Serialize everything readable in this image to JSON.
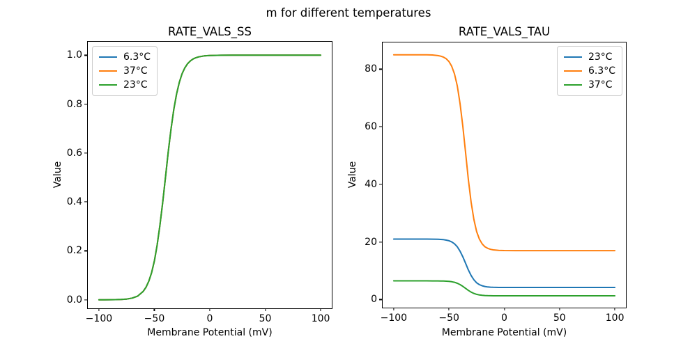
{
  "figure": {
    "suptitle": "m for different temperatures",
    "background_color": "#ffffff",
    "text_color": "#000000"
  },
  "colors": {
    "blue": "#1f77b4",
    "orange": "#ff7f0e",
    "green": "#2ca02c",
    "axis": "#000000",
    "legend_border": "#cccccc"
  },
  "chart_data": [
    {
      "id": "rate_vals_ss",
      "type": "line",
      "title": "RATE_VALS_SS",
      "xlabel": "Membrane Potential (mV)",
      "ylabel": "Value",
      "grid": false,
      "xlim": [
        -110,
        110
      ],
      "ylim": [
        -0.035,
        1.055
      ],
      "xticks": {
        "values": [
          -100,
          -50,
          0,
          50,
          100
        ],
        "labels": [
          "−100",
          "−50",
          "0",
          "50",
          "100"
        ]
      },
      "yticks": {
        "values": [
          0.0,
          0.2,
          0.4,
          0.6,
          0.8,
          1.0
        ],
        "labels": [
          "0.0",
          "0.2",
          "0.4",
          "0.6",
          "0.8",
          "1.0"
        ]
      },
      "legend": {
        "position": "upper-left",
        "entries": [
          {
            "label": "6.3°C",
            "color": "#1f77b4"
          },
          {
            "label": "37°C",
            "color": "#ff7f0e"
          },
          {
            "label": "23°C",
            "color": "#2ca02c"
          }
        ]
      },
      "note": "All three temperature curves overlap exactly; the green 23°C curve is drawn last and visible.",
      "x": [
        -100,
        -95,
        -90,
        -85,
        -80,
        -75,
        -70,
        -65,
        -60,
        -57.5,
        -55,
        -52.5,
        -50,
        -47.5,
        -45,
        -42.5,
        -40,
        -37.5,
        -35,
        -32.5,
        -30,
        -27.5,
        -25,
        -22.5,
        -20,
        -17.5,
        -15,
        -12.5,
        -10,
        -5,
        0,
        10,
        20,
        30,
        50,
        75,
        100
      ],
      "curves": {
        "ss": [
          0.0,
          0.0001,
          0.0002,
          0.0006,
          0.0013,
          0.0029,
          0.0067,
          0.0152,
          0.0344,
          0.0513,
          0.0759,
          0.1107,
          0.1589,
          0.2227,
          0.3036,
          0.3973,
          0.5,
          0.6027,
          0.6964,
          0.7773,
          0.8411,
          0.8893,
          0.9241,
          0.9487,
          0.9656,
          0.977,
          0.9848,
          0.9899,
          0.9933,
          0.9971,
          0.9987,
          0.9998,
          1.0,
          1.0,
          1.0,
          1.0,
          1.0
        ]
      },
      "series": [
        {
          "label": "6.3°C",
          "color": "#1f77b4",
          "curve": "ss"
        },
        {
          "label": "37°C",
          "color": "#ff7f0e",
          "curve": "ss"
        },
        {
          "label": "23°C",
          "color": "#2ca02c",
          "curve": "ss"
        }
      ]
    },
    {
      "id": "rate_vals_tau",
      "type": "line",
      "title": "RATE_VALS_TAU",
      "xlabel": "Membrane Potential (mV)",
      "ylabel": "Value",
      "grid": false,
      "xlim": [
        -110,
        110
      ],
      "ylim": [
        -2.8,
        89.3
      ],
      "xticks": {
        "values": [
          -100,
          -50,
          0,
          50,
          100
        ],
        "labels": [
          "−100",
          "−50",
          "0",
          "50",
          "100"
        ]
      },
      "yticks": {
        "values": [
          0,
          20,
          40,
          60,
          80
        ],
        "labels": [
          "0",
          "20",
          "40",
          "60",
          "80"
        ]
      },
      "legend": {
        "position": "upper-right",
        "entries": [
          {
            "label": "23°C",
            "color": "#1f77b4"
          },
          {
            "label": "6.3°C",
            "color": "#ff7f0e"
          },
          {
            "label": "37°C",
            "color": "#2ca02c"
          }
        ]
      },
      "x": [
        -100,
        -95,
        -90,
        -85,
        -80,
        -75,
        -70,
        -65,
        -60,
        -57.5,
        -55,
        -52.5,
        -50,
        -47.5,
        -45,
        -42.5,
        -40,
        -37.5,
        -35,
        -32.5,
        -30,
        -27.5,
        -25,
        -22.5,
        -20,
        -17.5,
        -15,
        -12.5,
        -10,
        -5,
        0,
        10,
        20,
        30,
        50,
        75,
        100
      ],
      "curves": {
        "tau_23": [
          21.0,
          21.0,
          21.0,
          21.0,
          21.0,
          21.0,
          21.0,
          20.99,
          20.93,
          20.89,
          20.81,
          20.66,
          20.42,
          20.02,
          19.36,
          18.33,
          16.84,
          14.87,
          12.6,
          10.33,
          8.36,
          6.87,
          5.84,
          5.18,
          4.78,
          4.54,
          4.39,
          4.31,
          4.26,
          4.22,
          4.21,
          4.2,
          4.2,
          4.2,
          4.2,
          4.2,
          4.2
        ],
        "tau_6_3": [
          85.0,
          85.0,
          85.0,
          85.0,
          85.0,
          85.0,
          84.99,
          84.96,
          84.73,
          84.54,
          84.21,
          83.64,
          82.66,
          81.02,
          78.36,
          74.19,
          68.16,
          60.21,
          51.0,
          41.79,
          33.84,
          27.81,
          23.65,
          20.98,
          19.35,
          18.36,
          17.79,
          17.46,
          17.26,
          17.09,
          17.03,
          17.0,
          17.0,
          17.0,
          17.0,
          17.0,
          17.0
        ],
        "tau_37": [
          6.5,
          6.5,
          6.5,
          6.5,
          6.5,
          6.5,
          6.5,
          6.49,
          6.48,
          6.47,
          6.44,
          6.39,
          6.32,
          6.2,
          5.99,
          5.67,
          5.21,
          4.6,
          3.9,
          3.2,
          2.59,
          2.13,
          1.81,
          1.6,
          1.48,
          1.4,
          1.36,
          1.33,
          1.32,
          1.31,
          1.3,
          1.3,
          1.3,
          1.3,
          1.3,
          1.3,
          1.3
        ]
      },
      "series": [
        {
          "label": "23°C",
          "color": "#1f77b4",
          "curve": "tau_23"
        },
        {
          "label": "6.3°C",
          "color": "#ff7f0e",
          "curve": "tau_6_3"
        },
        {
          "label": "37°C",
          "color": "#2ca02c",
          "curve": "tau_37"
        }
      ]
    }
  ]
}
